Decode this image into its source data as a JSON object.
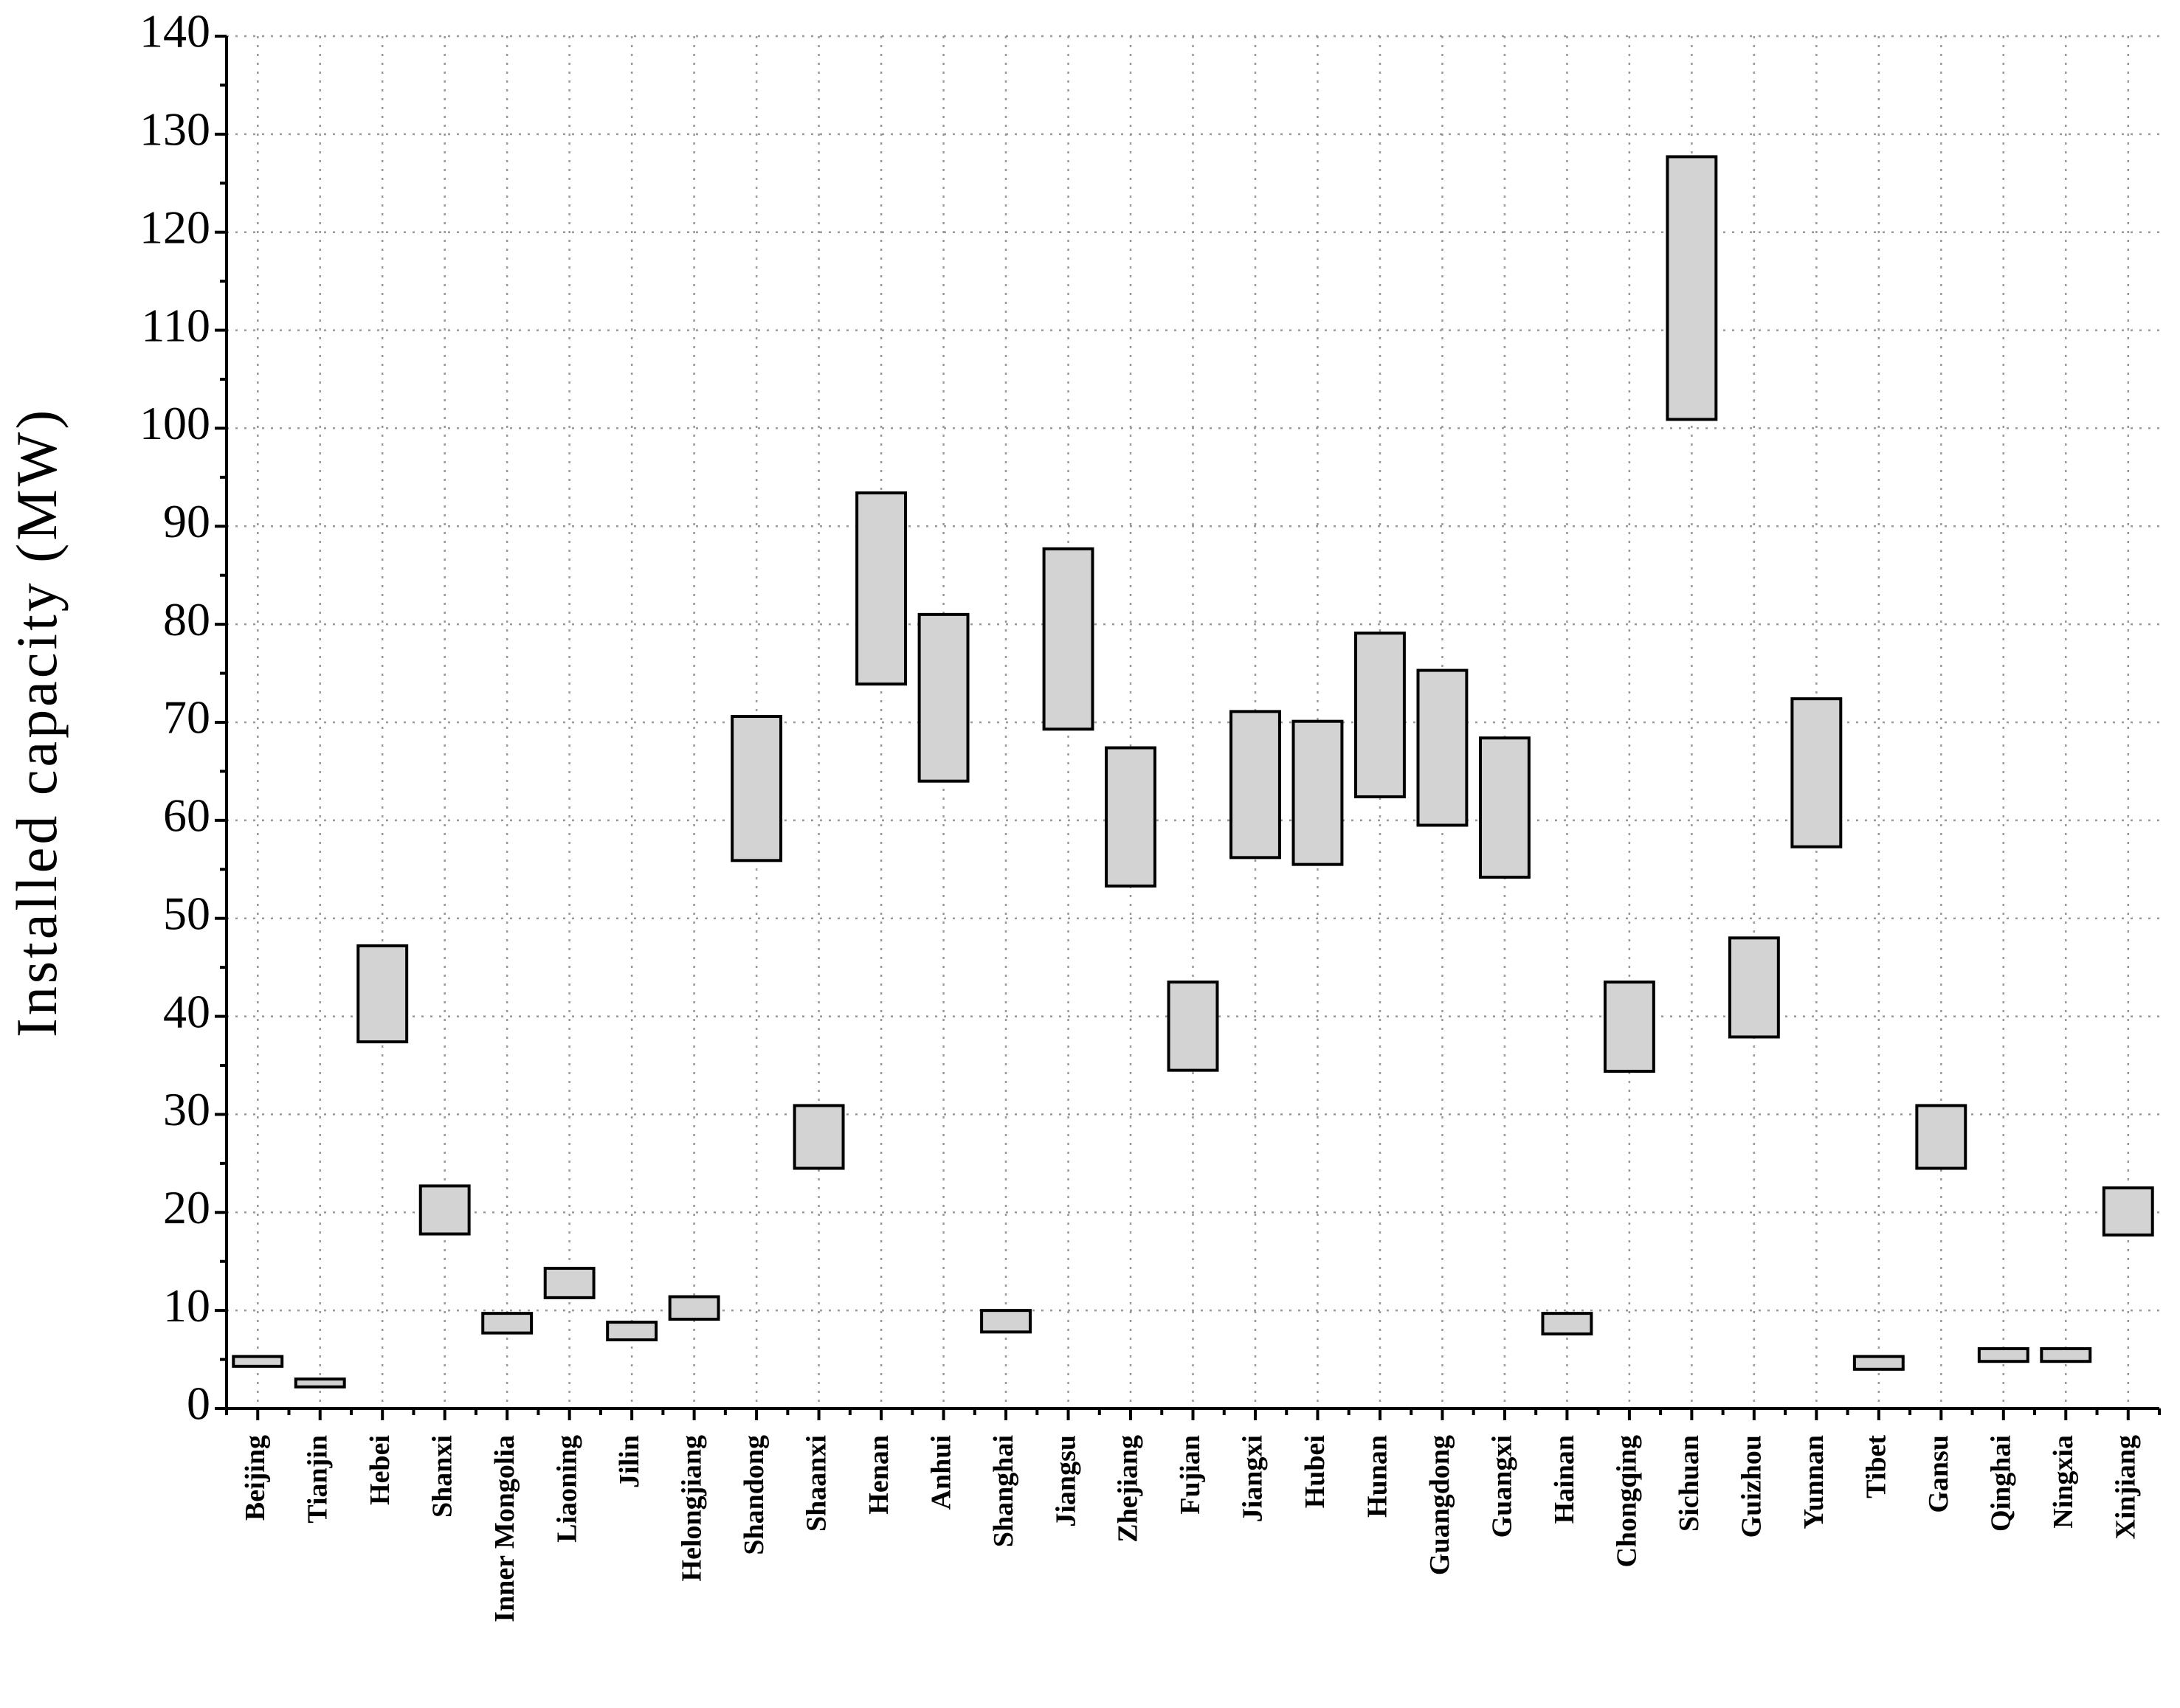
{
  "chart_data": {
    "type": "range-bar",
    "y_label": "Installed capacity (MW)",
    "categories": [
      "Beijing",
      "Tianjin",
      "Hebei",
      "Shanxi",
      "Inner Mongolia",
      "Liaoning",
      "Jilin",
      "Helongjiang",
      "Shandong",
      "Shaanxi",
      "Henan",
      "Anhui",
      "Shanghai",
      "Jiangsu",
      "Zhejiang",
      "Fujian",
      "Jiangxi",
      "Hubei",
      "Hunan",
      "Guangdong",
      "Guangxi",
      "Hainan",
      "Chongqing",
      "Sichuan",
      "Guizhou",
      "Yunnan",
      "Tibet",
      "Gansu",
      "Qinghai",
      "Ningxia",
      "Xinjiang"
    ],
    "low": [
      4.3,
      2.2,
      37.4,
      17.8,
      7.7,
      11.3,
      7.0,
      9.1,
      55.9,
      24.5,
      73.9,
      64.0,
      7.8,
      69.3,
      53.3,
      34.5,
      56.2,
      55.5,
      62.4,
      59.5,
      54.2,
      7.6,
      34.4,
      100.9,
      37.9,
      57.3,
      4.0,
      24.5,
      4.8,
      4.8,
      17.7
    ],
    "high": [
      5.3,
      3.0,
      47.2,
      22.7,
      9.7,
      14.3,
      8.8,
      11.4,
      70.6,
      30.9,
      93.4,
      81.0,
      10.0,
      87.7,
      67.4,
      43.5,
      71.1,
      70.1,
      79.1,
      75.3,
      68.4,
      9.7,
      43.5,
      127.7,
      48.0,
      72.4,
      5.3,
      30.9,
      6.1,
      6.1,
      22.5
    ],
    "color": "#d3d3d3",
    "ylim": [
      0,
      140
    ],
    "yticks": [
      0,
      10,
      20,
      30,
      40,
      50,
      60,
      70,
      80,
      90,
      100,
      110,
      120,
      130,
      140
    ],
    "grid": true
  }
}
